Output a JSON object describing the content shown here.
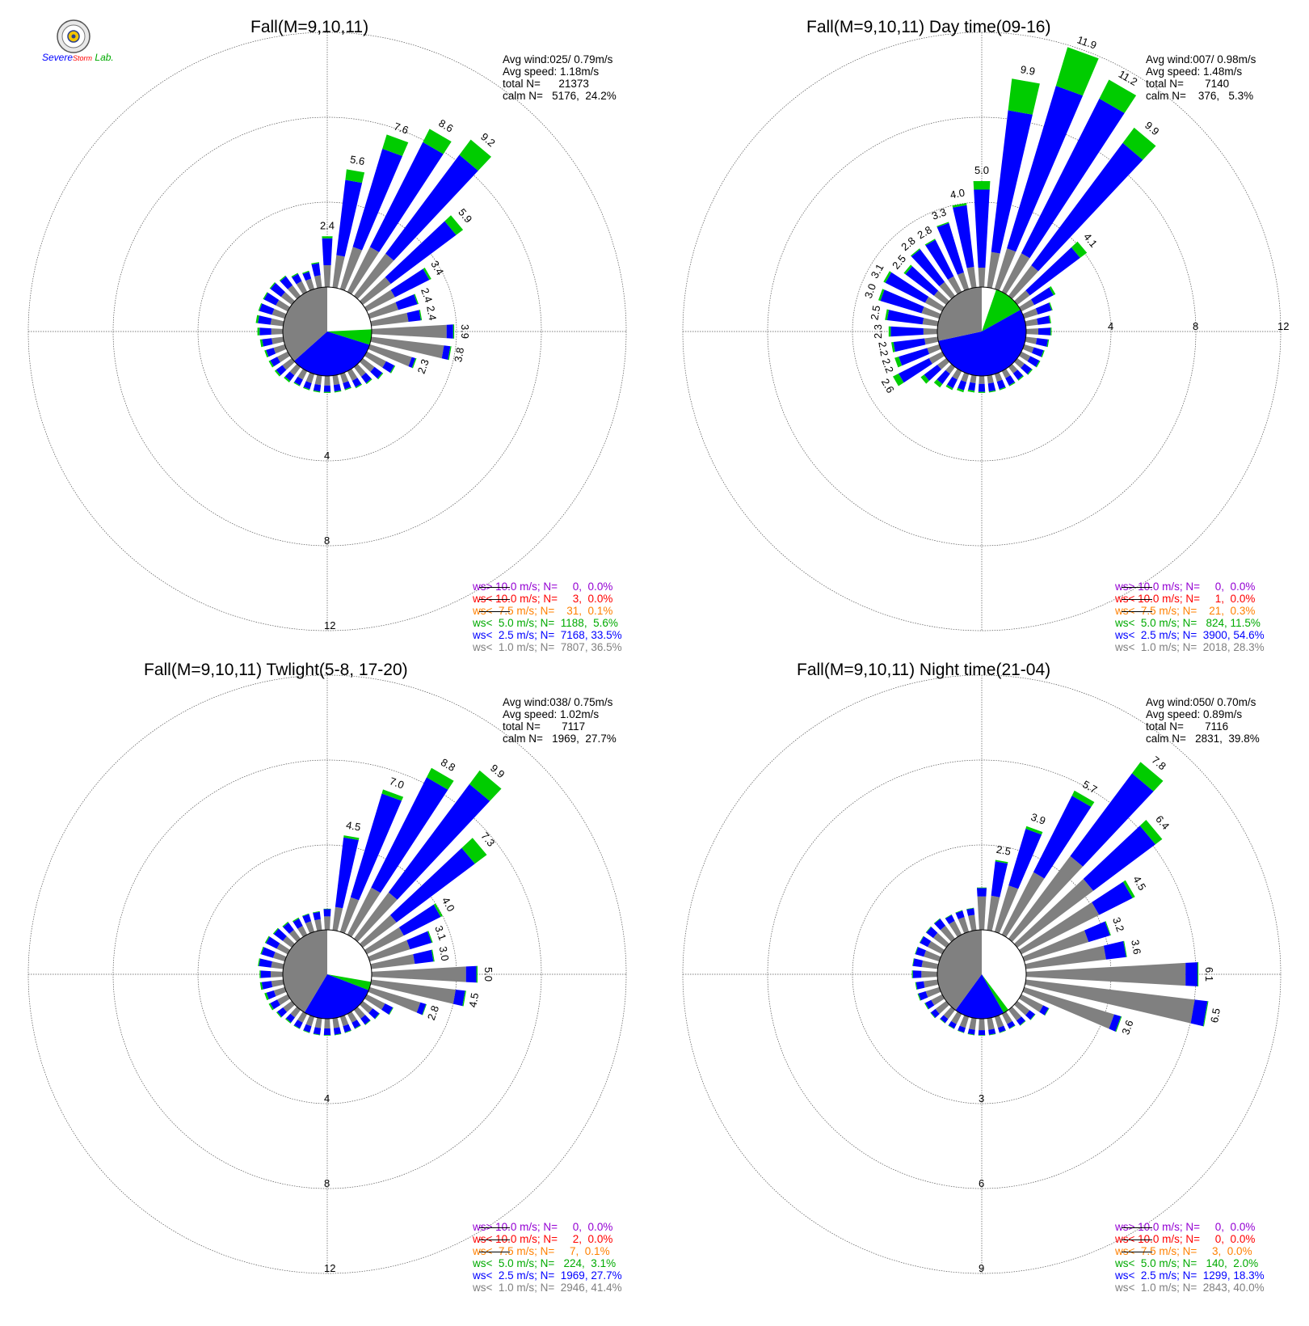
{
  "logo": {
    "text_severe": "Severe",
    "text_storm": "Storm",
    "text_lab": "Lab."
  },
  "colors": {
    "calm": "#ffffff",
    "lt1": "#808080",
    "lt2_5": "#0000ff",
    "lt5": "#00cc00",
    "lt7_5": "#ff8000",
    "lt10": "#ff0000",
    "gt10": "#9400d3"
  },
  "panels": [
    {
      "title": "Fall(M=9,10,11)",
      "stats": [
        "Avg wind:025/ 0.79m/s",
        "Avg speed: 1.18m/s",
        "total N=      21373",
        "calm N=   5176,  24.2%"
      ],
      "legend": [
        "ws> 10.0 m/s; N=     0,  0.0%",
        "ws< 10.0 m/s; N=     3,  0.0%",
        "ws<  7.5 m/s; N=    31,  0.1%",
        "ws<  5.0 m/s; N=  1188,  5.6%",
        "ws<  2.5 m/s; N=  7168, 33.5%",
        "ws<  1.0 m/s; N=  7807, 36.5%"
      ],
      "ring_labels": [
        "4",
        "8",
        "12"
      ],
      "ring_axis": "south"
    },
    {
      "title": "Fall(M=9,10,11) Day time(09-16)",
      "stats": [
        "Avg wind:007/ 0.98m/s",
        "Avg speed: 1.48m/s",
        "total N=       7140",
        "calm N=    376,   5.3%"
      ],
      "legend": [
        "ws> 10.0 m/s; N=     0,  0.0%",
        "ws< 10.0 m/s; N=     1,  0.0%",
        "ws<  7.5 m/s; N=    21,  0.3%",
        "ws<  5.0 m/s; N=   824, 11.5%",
        "ws<  2.5 m/s; N=  3900, 54.6%",
        "ws<  1.0 m/s; N=  2018, 28.3%"
      ],
      "ring_labels": [
        "4",
        "8",
        "12"
      ],
      "ring_axis": "east"
    },
    {
      "title": "Fall(M=9,10,11) Twlight(5-8, 17-20)",
      "stats": [
        "Avg wind:038/ 0.75m/s",
        "Avg speed: 1.02m/s",
        "total N=       7117",
        "calm N=   1969,  27.7%"
      ],
      "legend": [
        "ws> 10.0 m/s; N=     0,  0.0%",
        "ws< 10.0 m/s; N=     2,  0.0%",
        "ws<  7.5 m/s; N=     7,  0.1%",
        "ws<  5.0 m/s; N=   224,  3.1%",
        "ws<  2.5 m/s; N=  1969, 27.7%",
        "ws<  1.0 m/s; N=  2946, 41.4%"
      ],
      "ring_labels": [
        "4",
        "8",
        "12"
      ],
      "ring_axis": "south"
    },
    {
      "title": "Fall(M=9,10,11) Night time(21-04)",
      "stats": [
        "Avg wind:050/ 0.70m/s",
        "Avg speed: 0.89m/s",
        "total N=       7116",
        "calm N=   2831,  39.8%"
      ],
      "legend": [
        "ws> 10.0 m/s; N=     0,  0.0%",
        "ws< 10.0 m/s; N=     0,  0.0%",
        "ws<  7.5 m/s; N=     3,  0.0%",
        "ws<  5.0 m/s; N=   140,  2.0%",
        "ws<  2.5 m/s; N=  1299, 18.3%",
        "ws<  1.0 m/s; N=  2843, 40.0%"
      ],
      "ring_labels": [
        "3",
        "6",
        "9"
      ],
      "ring_axis": "south"
    }
  ],
  "chart_data": [
    {
      "type": "wind-rose",
      "title": "Fall(M=9,10,11)",
      "rmax": 12,
      "rings": [
        4,
        8,
        12
      ],
      "directions_deg": [
        0,
        10,
        20,
        30,
        40,
        50,
        60,
        70,
        80,
        90,
        100,
        110,
        120,
        130,
        140,
        150,
        160,
        170,
        180,
        190,
        200,
        210,
        220,
        230,
        240,
        250,
        260,
        270,
        280,
        290,
        300,
        310,
        320,
        330,
        340,
        350
      ],
      "totals": [
        2.4,
        5.6,
        7.6,
        8.6,
        9.2,
        5.9,
        3.4,
        2.4,
        2.4,
        3.9,
        3.8,
        2.3,
        1.5,
        1.2,
        1.0,
        0.9,
        0.8,
        0.8,
        0.8,
        0.8,
        0.8,
        0.8,
        0.9,
        1.0,
        1.0,
        1.0,
        1.1,
        1.2,
        1.3,
        1.3,
        1.3,
        1.3,
        1.2,
        1.0,
        0.9,
        1.2
      ],
      "green": [
        0.1,
        0.5,
        0.7,
        0.7,
        0.9,
        0.4,
        0.1,
        0.05,
        0.05,
        0.05,
        0.05,
        0.05,
        0.05,
        0.05,
        0.05,
        0.05,
        0.05,
        0.05,
        0.05,
        0.05,
        0.05,
        0.05,
        0.08,
        0.08,
        0.08,
        0.08,
        0.1,
        0.1,
        0.1,
        0.05,
        0.05,
        0.05,
        0.05,
        0.05,
        0.05,
        0.05
      ],
      "blue_frac": [
        0.55,
        0.7,
        0.7,
        0.7,
        0.7,
        0.7,
        0.55,
        0.4,
        0.25,
        0.08,
        0.08,
        0.08,
        0.3,
        0.4,
        0.4,
        0.4,
        0.4,
        0.4,
        0.4,
        0.4,
        0.4,
        0.4,
        0.4,
        0.4,
        0.4,
        0.4,
        0.45,
        0.5,
        0.5,
        0.5,
        0.5,
        0.5,
        0.45,
        0.4,
        0.4,
        0.5
      ],
      "labeled": [
        {
          "dir": 0,
          "text": "2.4"
        },
        {
          "dir": 10,
          "text": "5.6"
        },
        {
          "dir": 20,
          "text": "7.6"
        },
        {
          "dir": 30,
          "text": "8.6"
        },
        {
          "dir": 40,
          "text": "9.2"
        },
        {
          "dir": 50,
          "text": "5.9"
        },
        {
          "dir": 60,
          "text": "3.4"
        },
        {
          "dir": 70,
          "text": "2.4"
        },
        {
          "dir": 80,
          "text": "2.4"
        },
        {
          "dir": 90,
          "text": "3.9"
        },
        {
          "dir": 100,
          "text": "3.8"
        },
        {
          "dir": 110,
          "text": "2.3"
        }
      ],
      "calm_pie": {
        "calm_pct": 24.2,
        "lt1_pct": 36.5,
        "lt2_5_pct": 33.5,
        "lt5_pct": 5.6
      }
    },
    {
      "type": "wind-rose",
      "title": "Fall(M=9,10,11) Day time(09-16)",
      "rmax": 12,
      "rings": [
        4,
        8,
        12
      ],
      "directions_deg": [
        0,
        10,
        20,
        30,
        40,
        50,
        60,
        70,
        80,
        90,
        100,
        110,
        120,
        130,
        140,
        150,
        160,
        170,
        180,
        190,
        200,
        210,
        220,
        230,
        240,
        250,
        260,
        270,
        280,
        290,
        300,
        310,
        320,
        330,
        340,
        350
      ],
      "totals": [
        5.0,
        9.9,
        11.9,
        11.2,
        9.9,
        4.1,
        1.8,
        1.4,
        1.2,
        1.2,
        1.1,
        1.0,
        1.0,
        0.9,
        0.8,
        0.8,
        0.8,
        0.8,
        0.8,
        0.8,
        0.9,
        1.0,
        1.2,
        1.5,
        2.6,
        2.2,
        2.2,
        2.3,
        2.5,
        3.0,
        3.1,
        2.5,
        2.8,
        2.8,
        3.3,
        4.0
      ],
      "green": [
        0.4,
        1.5,
        1.9,
        1.0,
        0.9,
        0.4,
        0.1,
        0.05,
        0.05,
        0.05,
        0.05,
        0.05,
        0.05,
        0.05,
        0.05,
        0.05,
        0.05,
        0.05,
        0.05,
        0.08,
        0.1,
        0.1,
        0.2,
        0.2,
        0.3,
        0.2,
        0.1,
        0.1,
        0.1,
        0.1,
        0.1,
        0.1,
        0.05,
        0.05,
        0.05,
        0.1
      ],
      "blue_frac": [
        0.8,
        0.8,
        0.8,
        0.8,
        0.8,
        0.8,
        0.6,
        0.5,
        0.5,
        0.5,
        0.5,
        0.5,
        0.5,
        0.5,
        0.5,
        0.5,
        0.5,
        0.5,
        0.5,
        0.5,
        0.5,
        0.5,
        0.6,
        0.6,
        0.7,
        0.7,
        0.7,
        0.7,
        0.7,
        0.7,
        0.7,
        0.7,
        0.7,
        0.7,
        0.75,
        0.75
      ],
      "labeled": [
        {
          "dir": 0,
          "text": "5.0"
        },
        {
          "dir": 10,
          "text": "9.9"
        },
        {
          "dir": 20,
          "text": "11.9"
        },
        {
          "dir": 30,
          "text": "11.2"
        },
        {
          "dir": 40,
          "text": "9.9"
        },
        {
          "dir": 50,
          "text": "4.1"
        },
        {
          "dir": 240,
          "text": "2.6"
        },
        {
          "dir": 250,
          "text": "2.2"
        },
        {
          "dir": 260,
          "text": "2.2"
        },
        {
          "dir": 270,
          "text": "2.3"
        },
        {
          "dir": 280,
          "text": "2.5"
        },
        {
          "dir": 290,
          "text": "3.0"
        },
        {
          "dir": 300,
          "text": "3.1"
        },
        {
          "dir": 310,
          "text": "2.5"
        },
        {
          "dir": 320,
          "text": "2.8"
        },
        {
          "dir": 330,
          "text": "2.8"
        },
        {
          "dir": 340,
          "text": "3.3"
        },
        {
          "dir": 350,
          "text": "4.0"
        }
      ],
      "calm_pie": {
        "calm_pct": 5.3,
        "lt1_pct": 28.3,
        "lt2_5_pct": 54.6,
        "lt5_pct": 11.5
      }
    },
    {
      "type": "wind-rose",
      "title": "Fall(M=9,10,11) Twlight(5-8, 17-20)",
      "rmax": 12,
      "rings": [
        4,
        8,
        12
      ],
      "directions_deg": [
        0,
        10,
        20,
        30,
        40,
        50,
        60,
        70,
        80,
        90,
        100,
        110,
        120,
        130,
        140,
        150,
        160,
        170,
        180,
        190,
        200,
        210,
        220,
        230,
        240,
        250,
        260,
        270,
        280,
        290,
        300,
        310,
        320,
        330,
        340,
        350
      ],
      "totals": [
        1.0,
        4.5,
        7.0,
        8.8,
        9.9,
        7.3,
        4.0,
        3.1,
        3.0,
        5.0,
        4.5,
        2.8,
        1.4,
        1.0,
        0.9,
        0.8,
        0.8,
        0.8,
        0.8,
        0.8,
        0.8,
        0.8,
        0.8,
        0.9,
        1.0,
        1.0,
        1.1,
        1.1,
        1.2,
        1.2,
        1.2,
        1.1,
        1.0,
        0.9,
        0.9,
        0.9
      ],
      "green": [
        0.02,
        0.1,
        0.2,
        0.5,
        0.8,
        0.7,
        0.1,
        0.05,
        0.05,
        0.05,
        0.05,
        0.03,
        0.03,
        0.03,
        0.03,
        0.03,
        0.03,
        0.03,
        0.03,
        0.03,
        0.03,
        0.03,
        0.05,
        0.05,
        0.08,
        0.1,
        0.08,
        0.05,
        0.05,
        0.05,
        0.05,
        0.05,
        0.05,
        0.05,
        0.03,
        0.03
      ],
      "blue_frac": [
        0.35,
        0.75,
        0.75,
        0.7,
        0.7,
        0.7,
        0.5,
        0.35,
        0.3,
        0.1,
        0.1,
        0.1,
        0.3,
        0.4,
        0.4,
        0.4,
        0.4,
        0.4,
        0.4,
        0.4,
        0.4,
        0.4,
        0.4,
        0.4,
        0.4,
        0.4,
        0.45,
        0.45,
        0.5,
        0.5,
        0.5,
        0.5,
        0.45,
        0.45,
        0.4,
        0.4
      ],
      "labeled": [
        {
          "dir": 10,
          "text": "4.5"
        },
        {
          "dir": 20,
          "text": "7.0"
        },
        {
          "dir": 30,
          "text": "8.8"
        },
        {
          "dir": 40,
          "text": "9.9"
        },
        {
          "dir": 50,
          "text": "7.3"
        },
        {
          "dir": 60,
          "text": "4.0"
        },
        {
          "dir": 70,
          "text": "3.1"
        },
        {
          "dir": 80,
          "text": "3.0"
        },
        {
          "dir": 90,
          "text": "5.0"
        },
        {
          "dir": 100,
          "text": "4.5"
        },
        {
          "dir": 110,
          "text": "2.8"
        }
      ],
      "calm_pie": {
        "calm_pct": 27.7,
        "lt1_pct": 41.4,
        "lt2_5_pct": 27.7,
        "lt5_pct": 3.1
      }
    },
    {
      "type": "wind-rose",
      "title": "Fall(M=9,10,11) Night time(21-04)",
      "rmax": 9,
      "rings": [
        3,
        6,
        9
      ],
      "directions_deg": [
        0,
        10,
        20,
        30,
        40,
        50,
        60,
        70,
        80,
        90,
        100,
        110,
        120,
        130,
        140,
        150,
        160,
        170,
        180,
        190,
        200,
        210,
        220,
        230,
        240,
        250,
        260,
        270,
        280,
        290,
        300,
        310,
        320,
        330,
        340,
        350
      ],
      "totals": [
        1.5,
        2.5,
        3.9,
        5.7,
        7.8,
        6.4,
        4.5,
        3.2,
        3.6,
        6.1,
        6.5,
        3.6,
        1.1,
        0.8,
        0.7,
        0.6,
        0.6,
        0.6,
        0.6,
        0.6,
        0.6,
        0.6,
        0.6,
        0.7,
        0.7,
        0.8,
        0.8,
        0.9,
        0.9,
        0.9,
        0.9,
        0.9,
        0.9,
        0.8,
        0.8,
        0.8
      ],
      "green": [
        0.02,
        0.05,
        0.1,
        0.2,
        0.5,
        0.3,
        0.1,
        0.03,
        0.03,
        0.03,
        0.03,
        0.03,
        0.02,
        0.02,
        0.02,
        0.02,
        0.02,
        0.02,
        0.02,
        0.02,
        0.02,
        0.02,
        0.02,
        0.02,
        0.03,
        0.03,
        0.03,
        0.03,
        0.02,
        0.02,
        0.02,
        0.02,
        0.02,
        0.02,
        0.02,
        0.02
      ],
      "blue_frac": [
        0.2,
        0.5,
        0.55,
        0.55,
        0.5,
        0.45,
        0.3,
        0.25,
        0.2,
        0.07,
        0.07,
        0.07,
        0.2,
        0.3,
        0.3,
        0.3,
        0.3,
        0.3,
        0.3,
        0.3,
        0.3,
        0.3,
        0.3,
        0.3,
        0.35,
        0.35,
        0.35,
        0.35,
        0.35,
        0.35,
        0.35,
        0.35,
        0.35,
        0.3,
        0.3,
        0.3
      ],
      "labeled": [
        {
          "dir": 10,
          "text": "2.5"
        },
        {
          "dir": 20,
          "text": "3.9"
        },
        {
          "dir": 30,
          "text": "5.7"
        },
        {
          "dir": 40,
          "text": "7.8"
        },
        {
          "dir": 50,
          "text": "6.4"
        },
        {
          "dir": 60,
          "text": "4.5"
        },
        {
          "dir": 70,
          "text": "3.2"
        },
        {
          "dir": 80,
          "text": "3.6"
        },
        {
          "dir": 90,
          "text": "6.1"
        },
        {
          "dir": 100,
          "text": "6.5"
        },
        {
          "dir": 110,
          "text": "3.6"
        }
      ],
      "calm_pie": {
        "calm_pct": 39.8,
        "lt1_pct": 40.0,
        "lt2_5_pct": 18.3,
        "lt5_pct": 2.0
      }
    }
  ]
}
